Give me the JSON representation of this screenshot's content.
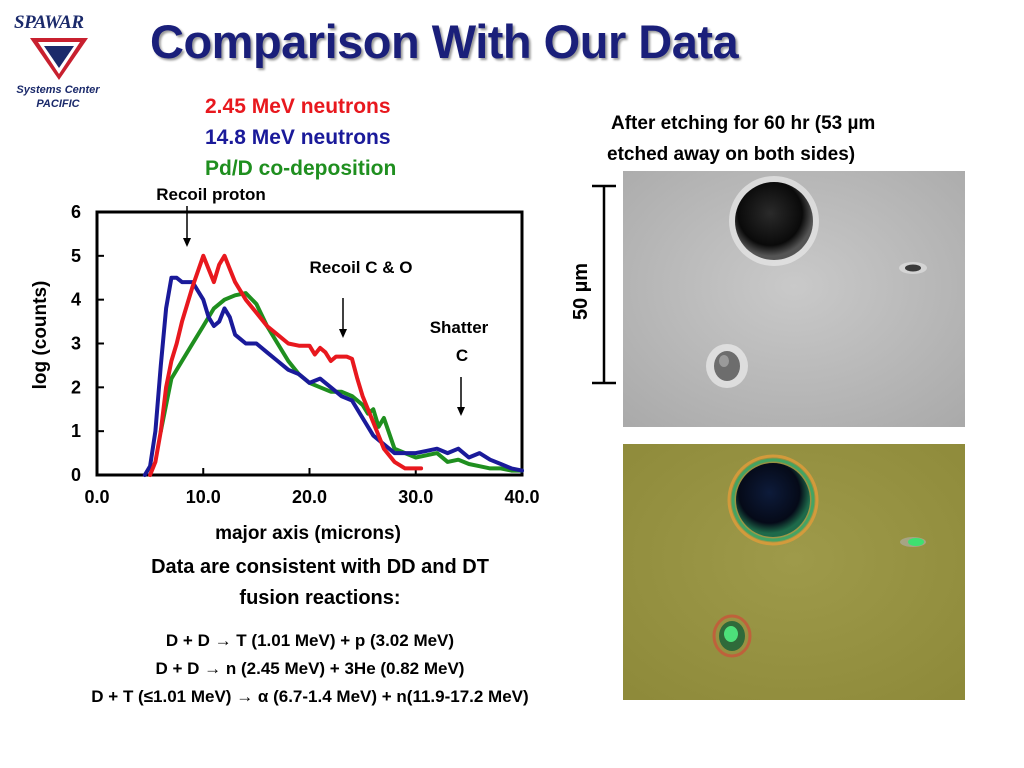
{
  "logo": {
    "wordmark": "SPAWAR",
    "line1": "Systems Center",
    "line2": "PACIFIC",
    "colors": {
      "navy": "#1b2a6b",
      "red": "#c8202f"
    }
  },
  "title": "Comparison With Our Data",
  "legend": [
    {
      "label": "2.45 MeV neutrons",
      "color": "#e8181e"
    },
    {
      "label": "14.8 MeV neutrons",
      "color": "#1a1a9a"
    },
    {
      "label": "Pd/D co-deposition",
      "color": "#1f8f1f"
    }
  ],
  "annotations": {
    "recoil_proton": "Recoil proton",
    "recoil_co": "Recoil C & O",
    "shatter_line1": "Shatter",
    "shatter_line2": "C"
  },
  "chart_data": {
    "type": "line",
    "xlabel": "major axis (microns)",
    "ylabel": "log (counts)",
    "xlim": [
      0,
      40
    ],
    "ylim": [
      0,
      6
    ],
    "x_ticks": [
      "0.0",
      "10.0",
      "20.0",
      "30.0",
      "40.0"
    ],
    "y_ticks": [
      "0",
      "1",
      "2",
      "3",
      "4",
      "5",
      "6"
    ],
    "grid": false,
    "series": [
      {
        "name": "2.45 MeV neutrons",
        "color": "#e8181e",
        "x": [
          5.0,
          5.5,
          6.0,
          6.5,
          7.0,
          7.5,
          8.0,
          9.0,
          10.0,
          10.5,
          11.0,
          11.5,
          12.0,
          12.5,
          13.0,
          14.0,
          15.0,
          16.0,
          17.0,
          18.0,
          19.0,
          20.0,
          20.5,
          21.0,
          21.5,
          22.0,
          22.5,
          23.0,
          23.5,
          24.0,
          24.5,
          25.0,
          26.0,
          27.0,
          28.0,
          29.0,
          30.0,
          30.5
        ],
        "y": [
          0.0,
          0.3,
          1.0,
          2.0,
          2.6,
          3.0,
          3.5,
          4.3,
          5.0,
          4.7,
          4.4,
          4.8,
          5.0,
          4.7,
          4.4,
          4.0,
          3.7,
          3.4,
          3.2,
          3.0,
          2.95,
          2.95,
          2.75,
          2.9,
          2.8,
          2.6,
          2.7,
          2.7,
          2.7,
          2.65,
          2.2,
          1.8,
          1.2,
          0.6,
          0.3,
          0.15,
          0.15,
          0.15
        ]
      },
      {
        "name": "14.8 MeV neutrons",
        "color": "#1a1a9a",
        "x": [
          4.5,
          5.0,
          5.5,
          6.0,
          6.5,
          7.0,
          7.5,
          8.0,
          8.5,
          9.0,
          9.5,
          10.0,
          10.5,
          11.0,
          11.5,
          12.0,
          12.5,
          13.0,
          13.5,
          14.0,
          15.0,
          16.0,
          17.0,
          18.0,
          19.0,
          20.0,
          21.0,
          22.0,
          23.0,
          24.0,
          25.0,
          26.0,
          27.0,
          28.0,
          29.0,
          30.0,
          31.0,
          32.0,
          33.0,
          34.0,
          35.0,
          36.0,
          37.0,
          38.0,
          39.0,
          40.0
        ],
        "y": [
          0.0,
          0.2,
          1.0,
          2.5,
          3.8,
          4.5,
          4.5,
          4.4,
          4.4,
          4.4,
          4.2,
          4.0,
          3.6,
          3.4,
          3.5,
          3.8,
          3.6,
          3.2,
          3.1,
          3.0,
          3.0,
          2.8,
          2.6,
          2.4,
          2.3,
          2.1,
          2.2,
          2.0,
          1.8,
          1.7,
          1.3,
          0.9,
          0.7,
          0.5,
          0.5,
          0.5,
          0.55,
          0.6,
          0.5,
          0.6,
          0.4,
          0.5,
          0.35,
          0.25,
          0.15,
          0.1
        ]
      },
      {
        "name": "Pd/D co-deposition",
        "color": "#1f8f1f",
        "x": [
          6.0,
          6.5,
          7.0,
          8.0,
          9.0,
          10.0,
          11.0,
          12.0,
          13.0,
          14.0,
          15.0,
          16.0,
          17.0,
          18.0,
          19.0,
          20.0,
          21.0,
          22.0,
          23.0,
          24.0,
          25.0,
          25.5,
          26.0,
          26.5,
          27.0,
          28.0,
          29.0,
          30.0,
          31.0,
          32.0,
          33.0,
          34.0,
          35.0,
          36.0,
          37.0,
          38.0,
          39.0,
          40.0
        ],
        "y": [
          1.0,
          1.6,
          2.2,
          2.6,
          3.0,
          3.4,
          3.8,
          4.0,
          4.1,
          4.15,
          3.9,
          3.4,
          3.0,
          2.6,
          2.3,
          2.1,
          2.0,
          1.9,
          1.9,
          1.8,
          1.6,
          1.4,
          1.5,
          1.1,
          1.3,
          0.6,
          0.5,
          0.4,
          0.45,
          0.5,
          0.3,
          0.35,
          0.25,
          0.2,
          0.15,
          0.15,
          0.1,
          0.1
        ]
      }
    ]
  },
  "photo_caption_line1": "After etching for 60 hr (53 µm",
  "photo_caption_line2": "etched away on both sides)",
  "scale_bar_label": "50 µm",
  "conclusion_line1": "Data are consistent with DD and DT",
  "conclusion_line2": "fusion reactions:",
  "equations": [
    "D + D → T (1.01 MeV) + p (3.02 MeV)",
    "D + D → n (2.45 MeV) + 3He (0.82 MeV)",
    "D + T (≤1.01 MeV) → α (6.7-1.4 MeV)  + n(11.9-17.2 MeV)"
  ]
}
